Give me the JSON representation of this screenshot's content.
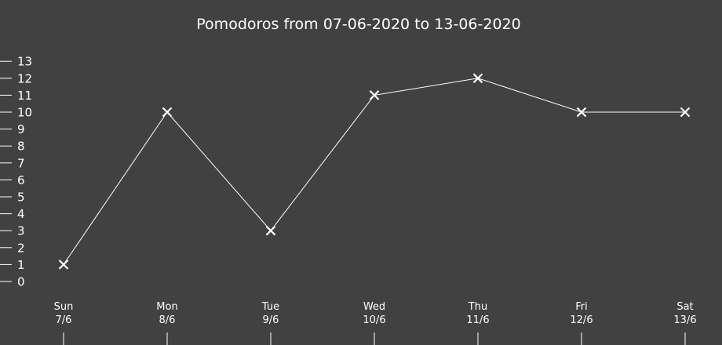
{
  "chart_data": {
    "type": "line",
    "title": "Pomodoros from 07-06-2020 to 13-06-2020",
    "xlabel": "",
    "ylabel": "",
    "x": [
      {
        "day": "Sun",
        "date": "7/6"
      },
      {
        "day": "Mon",
        "date": "8/6"
      },
      {
        "day": "Tue",
        "date": "9/6"
      },
      {
        "day": "Wed",
        "date": "10/6"
      },
      {
        "day": "Thu",
        "date": "11/6"
      },
      {
        "day": "Fri",
        "date": "12/6"
      },
      {
        "day": "Sat",
        "date": "13/6"
      }
    ],
    "series": [
      {
        "values": [
          1,
          10,
          3,
          11,
          12,
          10,
          10
        ],
        "marker": "x"
      }
    ],
    "yticks": [
      0,
      1,
      2,
      3,
      4,
      5,
      6,
      7,
      8,
      9,
      10,
      11,
      12,
      13
    ],
    "ylim": [
      0,
      13
    ],
    "grid": false,
    "legend": "none",
    "colors": {
      "background": "#414141",
      "foreground": "#ffffff"
    }
  }
}
